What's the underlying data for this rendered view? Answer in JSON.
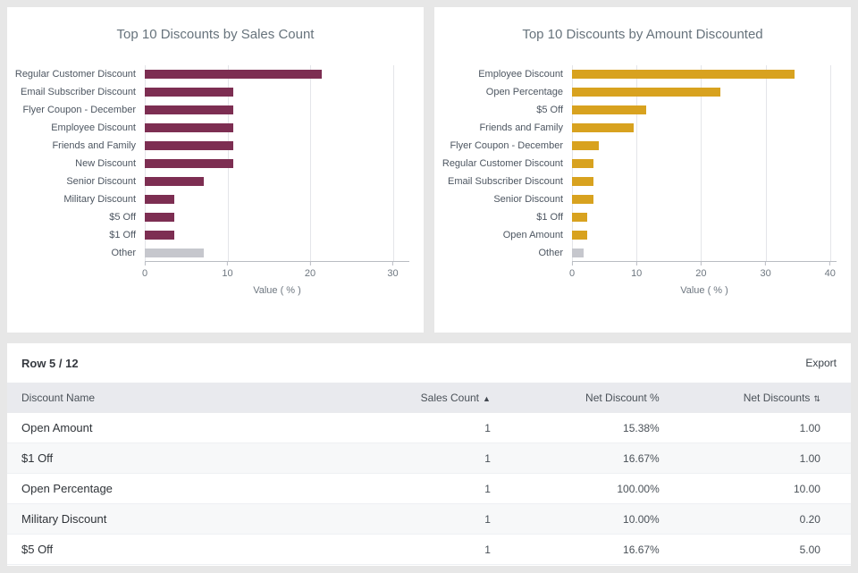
{
  "theme": {
    "page_bg": "#e7e7e7",
    "card_bg": "#ffffff",
    "other_bar_color": "#c6c7cd",
    "left_bar_color": "#7d2e52",
    "right_bar_color": "#d8a21f"
  },
  "chart_data": [
    {
      "type": "bar",
      "orientation": "horizontal",
      "title": "Top 10 Discounts by Sales Count",
      "categories": [
        "Regular Customer Discount",
        "Email Subscriber Discount",
        "Flyer Coupon - December",
        "Employee Discount",
        "Friends and Family",
        "New Discount",
        "Senior Discount",
        "Military Discount",
        "$5 Off",
        "$1 Off",
        "Other"
      ],
      "values": [
        21.43,
        10.71,
        10.71,
        10.71,
        10.71,
        10.71,
        7.14,
        3.57,
        3.57,
        3.57,
        7.14
      ],
      "bar_color": "#7d2e52",
      "xlabel": "Value ( % )",
      "xticks": [
        0,
        10,
        20,
        30
      ],
      "xmax": 32,
      "grid": true,
      "legend": "none"
    },
    {
      "type": "bar",
      "orientation": "horizontal",
      "title": "Top 10 Discounts by Amount Discounted",
      "categories": [
        "Employee Discount",
        "Open Percentage",
        "$5 Off",
        "Friends and Family",
        "Flyer Coupon - December",
        "Regular Customer Discount",
        "Email Subscriber Discount",
        "Senior Discount",
        "$1 Off",
        "Open Amount",
        "Other"
      ],
      "values": [
        34.5,
        23.0,
        11.5,
        9.6,
        4.1,
        3.3,
        3.3,
        3.3,
        2.3,
        2.3,
        1.8
      ],
      "bar_color": "#d8a21f",
      "xlabel": "Value ( % )",
      "xticks": [
        0,
        10,
        20,
        30,
        40
      ],
      "xmax": 41,
      "grid": true,
      "legend": "none"
    }
  ],
  "table": {
    "row_indicator": "Row 5 / 12",
    "export_label": "Export",
    "columns": [
      {
        "label": "Discount Name",
        "sort_icon": ""
      },
      {
        "label": "Sales Count",
        "sort_icon": "caret-up-icon"
      },
      {
        "label": "Net Discount %",
        "sort_icon": ""
      },
      {
        "label": "Net Discounts",
        "sort_icon": "sort-arrows-icon"
      }
    ],
    "row_fields": [
      "discount_name",
      "sales_count",
      "net_discount_pct",
      "net_discounts"
    ],
    "rows": [
      {
        "discount_name": "Open Amount",
        "sales_count": "1",
        "net_discount_pct": "15.38%",
        "net_discounts": "1.00"
      },
      {
        "discount_name": "$1 Off",
        "sales_count": "1",
        "net_discount_pct": "16.67%",
        "net_discounts": "1.00"
      },
      {
        "discount_name": "Open Percentage",
        "sales_count": "1",
        "net_discount_pct": "100.00%",
        "net_discounts": "10.00"
      },
      {
        "discount_name": "Military Discount",
        "sales_count": "1",
        "net_discount_pct": "10.00%",
        "net_discounts": "0.20"
      },
      {
        "discount_name": "$5 Off",
        "sales_count": "1",
        "net_discount_pct": "16.67%",
        "net_discounts": "5.00"
      }
    ]
  }
}
